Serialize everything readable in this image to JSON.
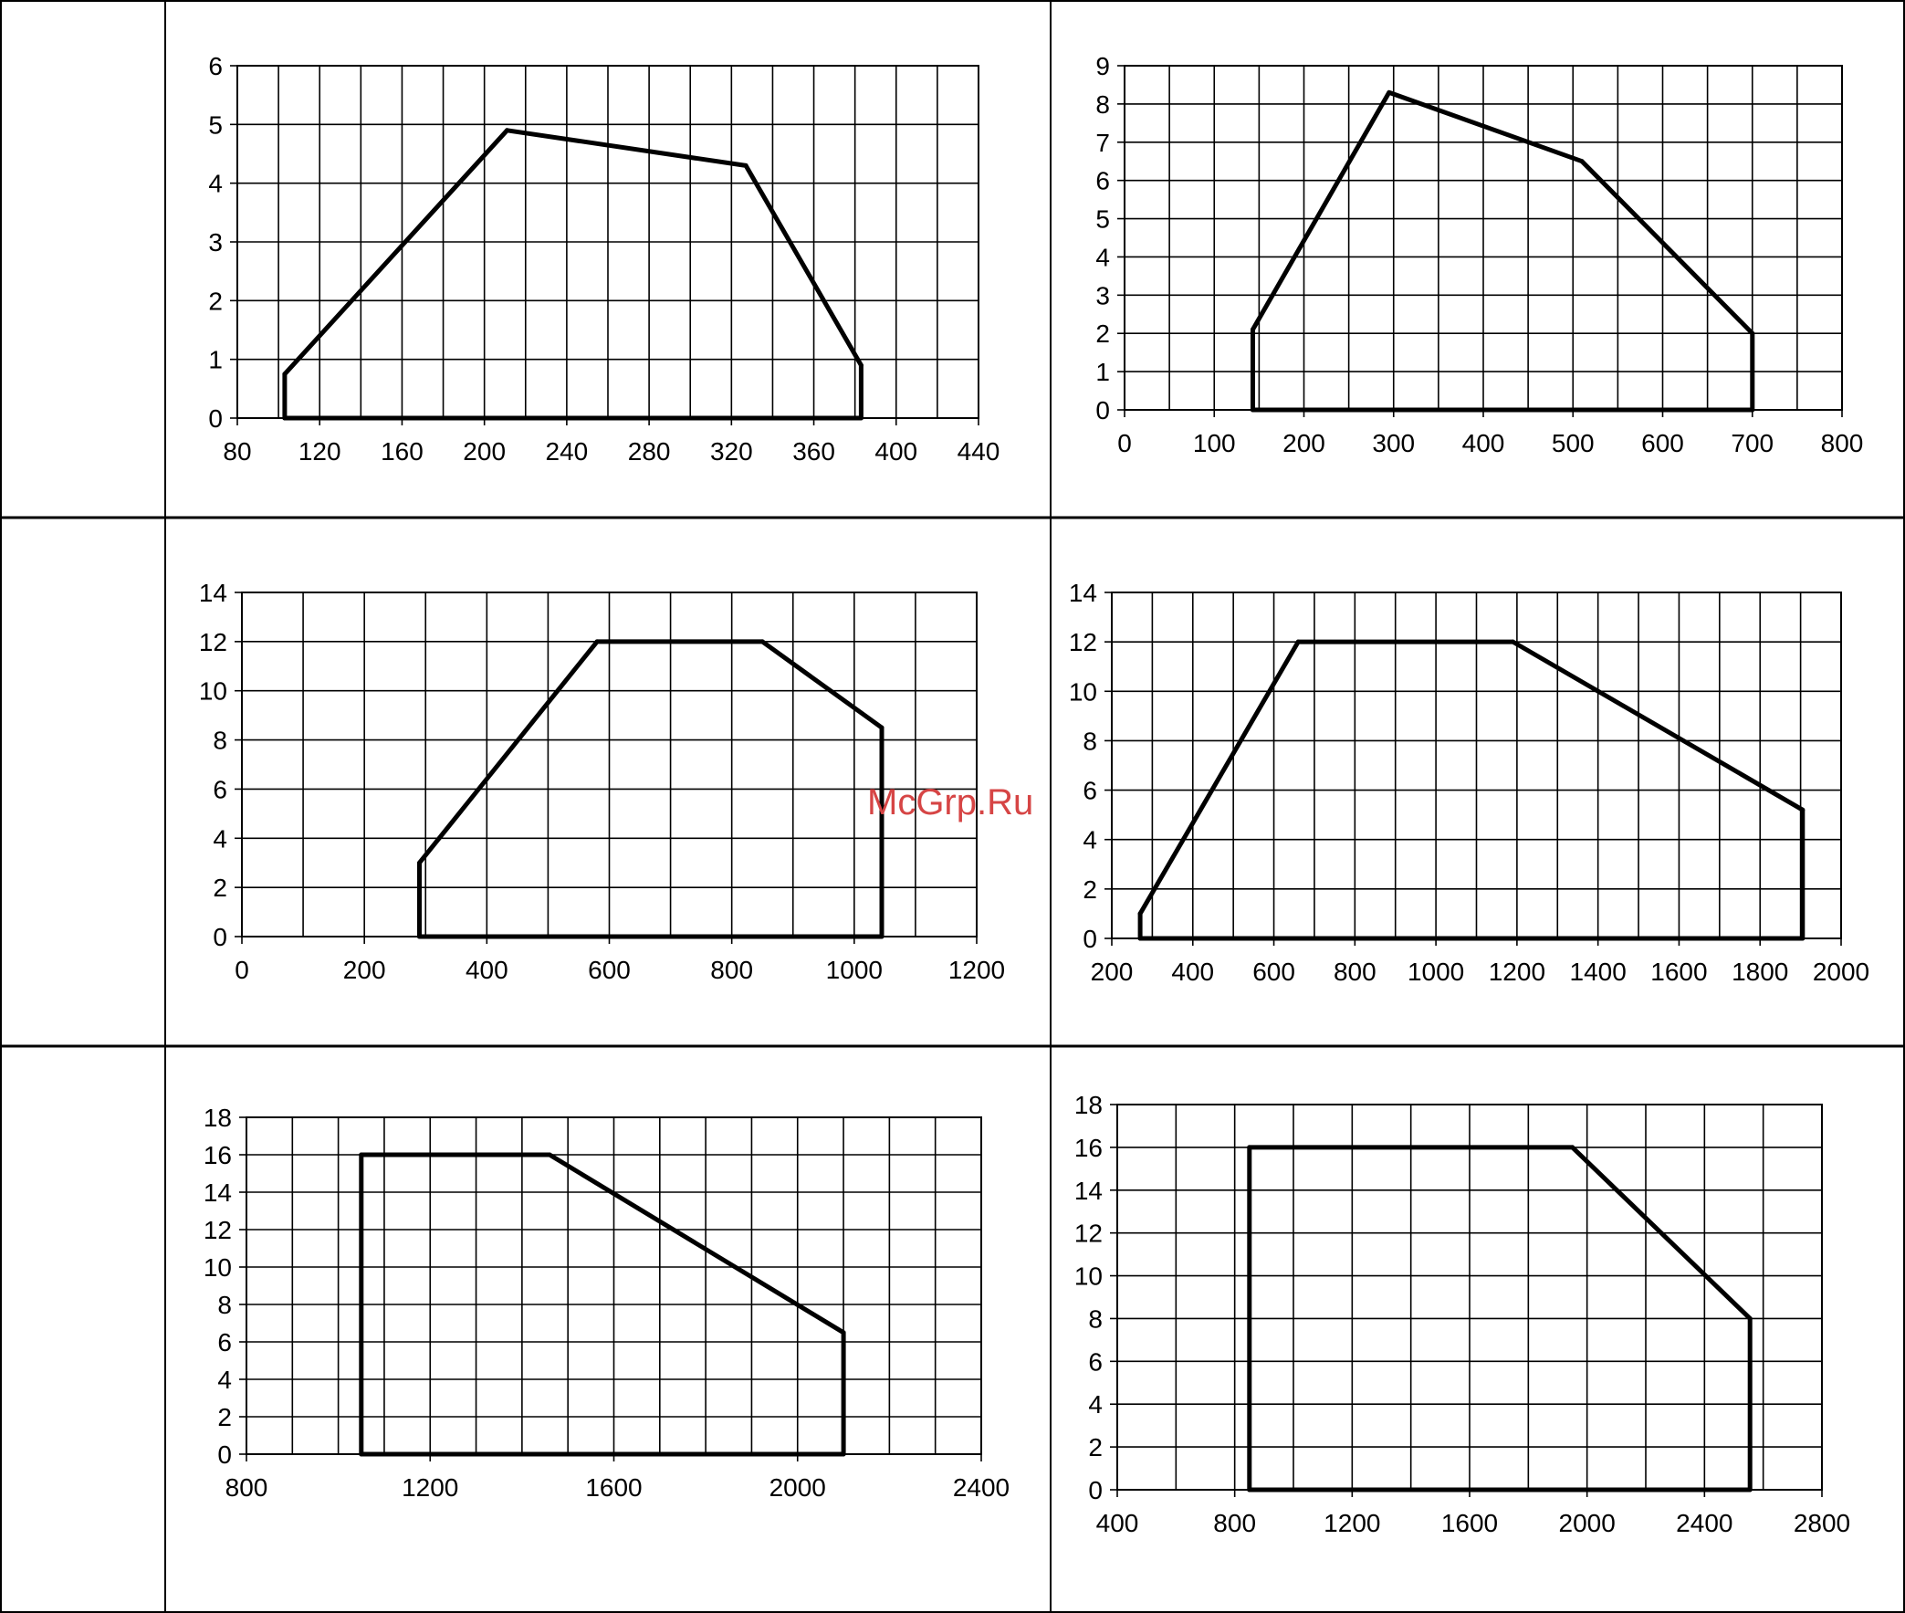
{
  "watermark": "McGrp.Ru",
  "chart_data": [
    {
      "type": "line",
      "xticks": [
        80,
        120,
        160,
        200,
        240,
        280,
        320,
        360,
        400,
        440
      ],
      "yticks": [
        0,
        1,
        2,
        3,
        4,
        5,
        6
      ],
      "xlim": [
        80,
        440
      ],
      "ylim": [
        0,
        6
      ],
      "grid": true,
      "series": [
        {
          "x": [
            103,
            103,
            211,
            327,
            383,
            383,
            103
          ],
          "y": [
            0,
            0.75,
            4.9,
            4.3,
            0.9,
            0,
            0
          ]
        }
      ]
    },
    {
      "type": "line",
      "xticks": [
        0,
        100,
        200,
        300,
        400,
        500,
        600,
        700,
        800
      ],
      "yticks": [
        0,
        1,
        2,
        3,
        4,
        5,
        6,
        7,
        8,
        9
      ],
      "xlim": [
        0,
        800
      ],
      "ylim": [
        0,
        9
      ],
      "grid": true,
      "series": [
        {
          "x": [
            143,
            143,
            295,
            510,
            700,
            700,
            143
          ],
          "y": [
            0,
            2.1,
            8.3,
            6.5,
            2.0,
            0,
            0
          ]
        }
      ]
    },
    {
      "type": "line",
      "xticks": [
        0,
        200,
        400,
        600,
        800,
        1000,
        1200
      ],
      "yticks": [
        0,
        2,
        4,
        6,
        8,
        10,
        12,
        14
      ],
      "xlim": [
        0,
        1200
      ],
      "ylim": [
        0,
        14
      ],
      "grid": true,
      "series": [
        {
          "x": [
            290,
            290,
            580,
            850,
            1045,
            1045,
            290
          ],
          "y": [
            0,
            3.0,
            12,
            12,
            8.5,
            0,
            0
          ]
        }
      ]
    },
    {
      "type": "line",
      "xticks": [
        200,
        400,
        600,
        800,
        1000,
        1200,
        1400,
        1600,
        1800,
        2000
      ],
      "yticks": [
        0,
        2,
        4,
        6,
        8,
        10,
        12,
        14
      ],
      "xlim": [
        200,
        2000
      ],
      "ylim": [
        0,
        14
      ],
      "grid": true,
      "series": [
        {
          "x": [
            270,
            270,
            660,
            1190,
            1905,
            1905,
            270
          ],
          "y": [
            0,
            1.0,
            12,
            12,
            5.2,
            0,
            0
          ]
        }
      ]
    },
    {
      "type": "line",
      "xticks": [
        800,
        1200,
        1600,
        2000,
        2400
      ],
      "yticks": [
        0,
        2,
        4,
        6,
        8,
        10,
        12,
        14,
        16,
        18
      ],
      "xlim": [
        800,
        2400
      ],
      "ylim": [
        0,
        18
      ],
      "grid": true,
      "series": [
        {
          "x": [
            1050,
            1050,
            1460,
            2100,
            2100,
            1050
          ],
          "y": [
            0,
            16,
            16,
            6.5,
            0,
            0
          ]
        }
      ]
    },
    {
      "type": "line",
      "xticks": [
        400,
        800,
        1200,
        1600,
        2000,
        2400,
        2800
      ],
      "yticks": [
        0,
        2,
        4,
        6,
        8,
        10,
        12,
        14,
        16,
        18
      ],
      "xlim": [
        400,
        2800
      ],
      "ylim": [
        0,
        18
      ],
      "grid": true,
      "series": [
        {
          "x": [
            850,
            850,
            1950,
            2555,
            2555,
            850
          ],
          "y": [
            0,
            16,
            16,
            8,
            0,
            0
          ]
        }
      ]
    }
  ]
}
